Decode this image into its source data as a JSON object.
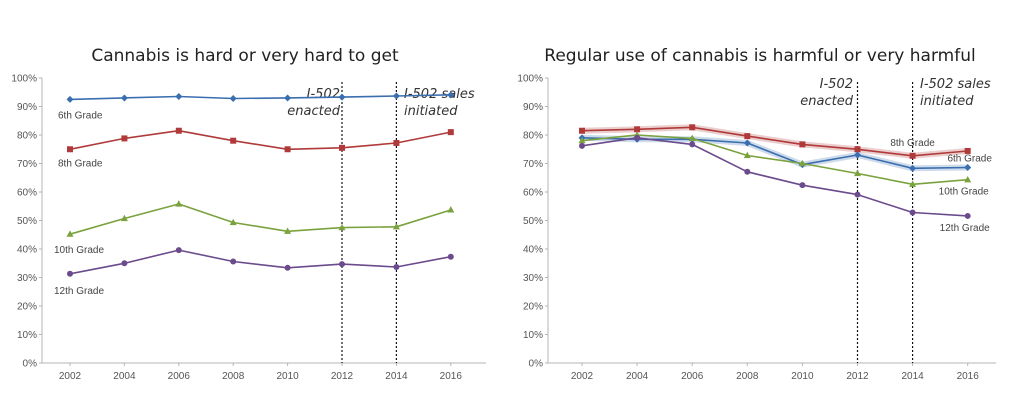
{
  "chart_data": [
    {
      "type": "line",
      "title": "Cannabis is hard or very hard to get",
      "x": [
        "2002",
        "2004",
        "2006",
        "2008",
        "2010",
        "2012",
        "2014",
        "2016"
      ],
      "ylim": [
        0,
        100
      ],
      "yticks": [
        "0%",
        "10%",
        "20%",
        "30%",
        "40%",
        "50%",
        "60%",
        "70%",
        "80%",
        "90%",
        "100%"
      ],
      "grid": false,
      "series": [
        {
          "name": "6th Grade",
          "color": "#3a6eb0",
          "marker": "diamond",
          "values": [
            92.5,
            93,
            93.5,
            92.8,
            93,
            93.3,
            93.7,
            94.1
          ]
        },
        {
          "name": "8th Grade",
          "color": "#b03a3a",
          "marker": "square",
          "values": [
            75,
            78.8,
            81.5,
            78,
            75,
            75.5,
            77.2,
            81
          ]
        },
        {
          "name": "10th Grade",
          "color": "#7aa23e",
          "marker": "triangle",
          "values": [
            45.2,
            50.7,
            55.8,
            49.3,
            46.2,
            47.5,
            47.8,
            53.7
          ]
        },
        {
          "name": "12th Grade",
          "color": "#6b4b8c",
          "marker": "circle",
          "values": [
            31.3,
            35,
            39.6,
            35.6,
            33.4,
            34.7,
            33.7,
            37.3
          ]
        }
      ],
      "annotations": [
        {
          "x": "2012",
          "lines": [
            "I-502",
            "enacted"
          ]
        },
        {
          "x": "2014",
          "lines": [
            "I-502 sales",
            "initiated"
          ]
        }
      ]
    },
    {
      "type": "line",
      "title": "Regular use of cannabis is harmful or very harmful",
      "x": [
        "2002",
        "2004",
        "2006",
        "2008",
        "2010",
        "2012",
        "2014",
        "2016"
      ],
      "ylim": [
        0,
        100
      ],
      "yticks": [
        "0%",
        "10%",
        "20%",
        "30%",
        "40%",
        "50%",
        "60%",
        "70%",
        "80%",
        "90%",
        "100%"
      ],
      "grid": false,
      "series": [
        {
          "name": "8th Grade",
          "color": "#b03a3a",
          "marker": "square",
          "values": [
            81.5,
            82,
            82.7,
            79.6,
            76.7,
            75,
            72.7,
            74.4
          ]
        },
        {
          "name": "6th Grade",
          "color": "#3a6eb0",
          "marker": "diamond",
          "values": [
            79,
            78.5,
            78.5,
            77.2,
            69.6,
            73,
            68.3,
            68.6
          ]
        },
        {
          "name": "10th Grade",
          "color": "#7aa23e",
          "marker": "triangle",
          "values": [
            78,
            80,
            78.8,
            72.8,
            70,
            66.5,
            62.7,
            64.3
          ]
        },
        {
          "name": "12th Grade",
          "color": "#6b4b8c",
          "marker": "circle",
          "values": [
            76.2,
            79,
            76.7,
            67.1,
            62.4,
            59.1,
            52.8,
            51.6
          ]
        }
      ],
      "annotations": [
        {
          "x": "2012",
          "lines": [
            "I-502",
            "enacted"
          ]
        },
        {
          "x": "2014",
          "lines": [
            "I-502 sales",
            "initiated"
          ]
        }
      ]
    }
  ]
}
